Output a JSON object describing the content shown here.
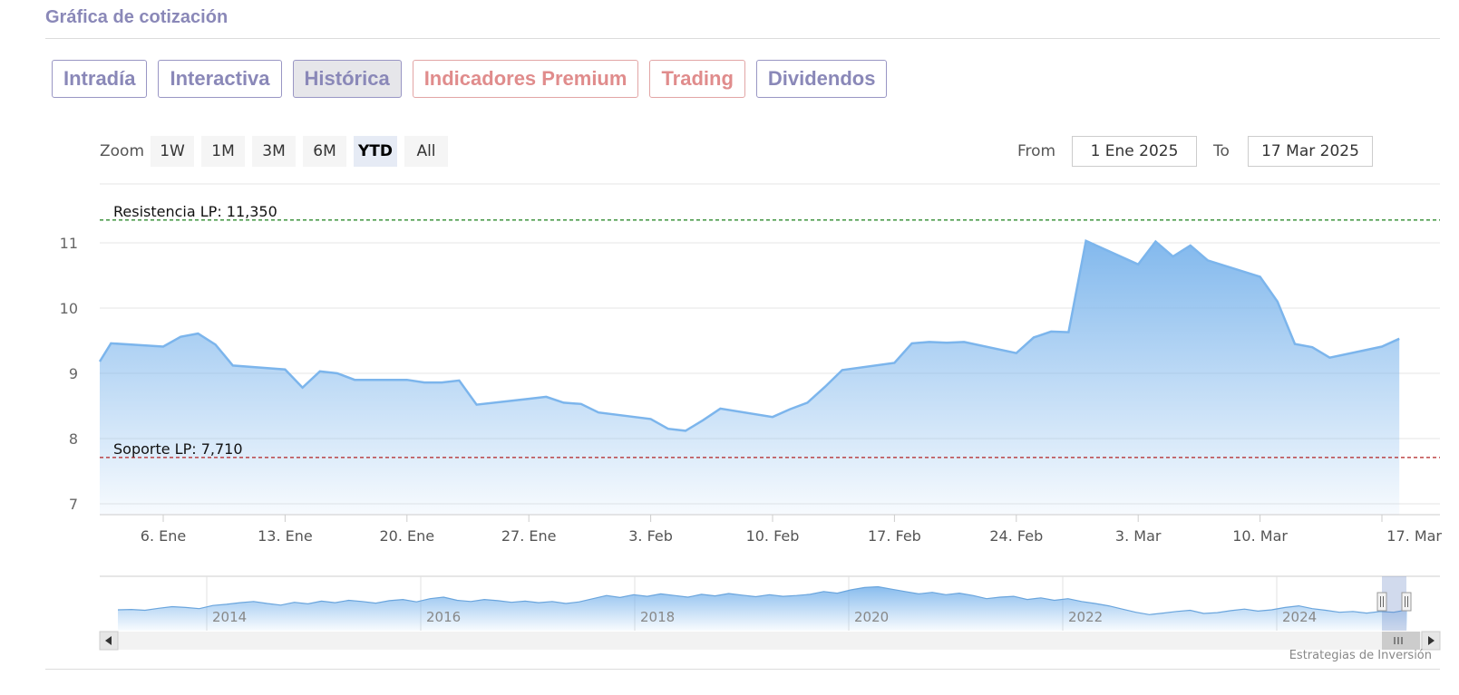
{
  "section_title": "Gráfica de cotización",
  "tabs": [
    {
      "label": "Intradía",
      "style": "purple",
      "active": false
    },
    {
      "label": "Interactiva",
      "style": "purple",
      "active": false
    },
    {
      "label": "Histórica",
      "style": "purple",
      "active": true
    },
    {
      "label": "Indicadores Premium",
      "style": "red",
      "active": false
    },
    {
      "label": "Trading",
      "style": "red",
      "active": false
    },
    {
      "label": "Dividendos",
      "style": "purple",
      "active": false
    }
  ],
  "range_selector": {
    "zoom_label": "Zoom",
    "buttons": [
      "1W",
      "1M",
      "3M",
      "6M",
      "YTD",
      "All"
    ],
    "selected": "YTD",
    "from_label": "From",
    "from_value": "1 Ene 2025",
    "to_label": "To",
    "to_value": "17 Mar 2025"
  },
  "credits": "Estrategias de Inversión",
  "colors": {
    "series_line": "#7cb5ec",
    "resistance_line": "#2e8b2e",
    "support_line": "#b22222",
    "tab_purple": "#8a88b8",
    "tab_red": "#e08c8c"
  },
  "chart_data": {
    "type": "area",
    "title": "",
    "xlabel": "",
    "ylabel": "",
    "ylim": [
      7,
      11.4
    ],
    "y_ticks": [
      "7",
      "8",
      "9",
      "10",
      "11"
    ],
    "x_ticks": [
      {
        "label": "6. Ene",
        "x": "2025-01-06"
      },
      {
        "label": "13. Ene",
        "x": "2025-01-13"
      },
      {
        "label": "20. Ene",
        "x": "2025-01-20"
      },
      {
        "label": "27. Ene",
        "x": "2025-01-27"
      },
      {
        "label": "3. Feb",
        "x": "2025-02-03"
      },
      {
        "label": "10. Feb",
        "x": "2025-02-10"
      },
      {
        "label": "17. Feb",
        "x": "2025-02-17"
      },
      {
        "label": "24. Feb",
        "x": "2025-02-24"
      },
      {
        "label": "3. Mar",
        "x": "2025-03-03"
      },
      {
        "label": "10. Mar",
        "x": "2025-03-10"
      },
      {
        "label": "17. Mar",
        "x": "2025-03-17"
      }
    ],
    "xlim": [
      "2025-01-02",
      "2025-03-17"
    ],
    "series": [
      {
        "points": [
          [
            "2025-01-02",
            9.18
          ],
          [
            "2025-01-03",
            9.46
          ],
          [
            "2025-01-06",
            9.41
          ],
          [
            "2025-01-07",
            9.56
          ],
          [
            "2025-01-08",
            9.61
          ],
          [
            "2025-01-09",
            9.44
          ],
          [
            "2025-01-10",
            9.12
          ],
          [
            "2025-01-13",
            9.06
          ],
          [
            "2025-01-14",
            8.78
          ],
          [
            "2025-01-15",
            9.03
          ],
          [
            "2025-01-16",
            9.0
          ],
          [
            "2025-01-17",
            8.9
          ],
          [
            "2025-01-20",
            8.9
          ],
          [
            "2025-01-21",
            8.86
          ],
          [
            "2025-01-22",
            8.86
          ],
          [
            "2025-01-23",
            8.89
          ],
          [
            "2025-01-24",
            8.52
          ],
          [
            "2025-01-27",
            8.61
          ],
          [
            "2025-01-28",
            8.64
          ],
          [
            "2025-01-29",
            8.55
          ],
          [
            "2025-01-30",
            8.53
          ],
          [
            "2025-01-31",
            8.4
          ],
          [
            "2025-02-03",
            8.3
          ],
          [
            "2025-02-04",
            8.15
          ],
          [
            "2025-02-05",
            8.12
          ],
          [
            "2025-02-06",
            8.28
          ],
          [
            "2025-02-07",
            8.46
          ],
          [
            "2025-02-10",
            8.33
          ],
          [
            "2025-02-11",
            8.45
          ],
          [
            "2025-02-12",
            8.55
          ],
          [
            "2025-02-13",
            8.79
          ],
          [
            "2025-02-14",
            9.05
          ],
          [
            "2025-02-17",
            9.16
          ],
          [
            "2025-02-18",
            9.46
          ],
          [
            "2025-02-19",
            9.48
          ],
          [
            "2025-02-20",
            9.47
          ],
          [
            "2025-02-21",
            9.48
          ],
          [
            "2025-02-24",
            9.31
          ],
          [
            "2025-02-25",
            9.55
          ],
          [
            "2025-02-26",
            9.64
          ],
          [
            "2025-02-27",
            9.63
          ],
          [
            "2025-02-28",
            11.03
          ],
          [
            "2025-03-03",
            10.67
          ],
          [
            "2025-03-04",
            11.02
          ],
          [
            "2025-03-05",
            10.79
          ],
          [
            "2025-03-06",
            10.96
          ],
          [
            "2025-03-07",
            10.73
          ],
          [
            "2025-03-10",
            10.48
          ],
          [
            "2025-03-11",
            10.1
          ],
          [
            "2025-03-12",
            9.45
          ],
          [
            "2025-03-13",
            9.4
          ],
          [
            "2025-03-14",
            9.24
          ],
          [
            "2025-03-17",
            9.41
          ],
          [
            "2025-03-18",
            9.53
          ]
        ]
      }
    ],
    "plot_lines": [
      {
        "label": "Resistencia LP: 11,350",
        "value": 11.35,
        "color": "#2e8b2e",
        "dash": "dashed"
      },
      {
        "label": "Soporte LP: 7,710",
        "value": 7.71,
        "color": "#b22222",
        "dash": "dashed"
      }
    ],
    "navigator": {
      "year_labels": [
        "2014",
        "2016",
        "2018",
        "2020",
        "2022",
        "2024"
      ],
      "values": [
        0.34,
        0.35,
        0.33,
        0.38,
        0.42,
        0.4,
        0.37,
        0.45,
        0.48,
        0.52,
        0.55,
        0.5,
        0.46,
        0.53,
        0.49,
        0.56,
        0.52,
        0.58,
        0.55,
        0.51,
        0.57,
        0.6,
        0.54,
        0.62,
        0.66,
        0.58,
        0.55,
        0.6,
        0.57,
        0.53,
        0.56,
        0.52,
        0.55,
        0.5,
        0.54,
        0.62,
        0.7,
        0.65,
        0.72,
        0.68,
        0.74,
        0.7,
        0.66,
        0.73,
        0.69,
        0.75,
        0.71,
        0.67,
        0.72,
        0.68,
        0.7,
        0.73,
        0.8,
        0.76,
        0.84,
        0.9,
        0.92,
        0.86,
        0.8,
        0.74,
        0.78,
        0.72,
        0.76,
        0.7,
        0.62,
        0.66,
        0.68,
        0.6,
        0.64,
        0.58,
        0.62,
        0.55,
        0.5,
        0.44,
        0.36,
        0.28,
        0.22,
        0.26,
        0.3,
        0.33,
        0.25,
        0.27,
        0.32,
        0.36,
        0.31,
        0.34,
        0.4,
        0.44,
        0.37,
        0.33,
        0.28,
        0.3,
        0.26,
        0.3,
        0.28,
        0.34
      ]
    }
  }
}
